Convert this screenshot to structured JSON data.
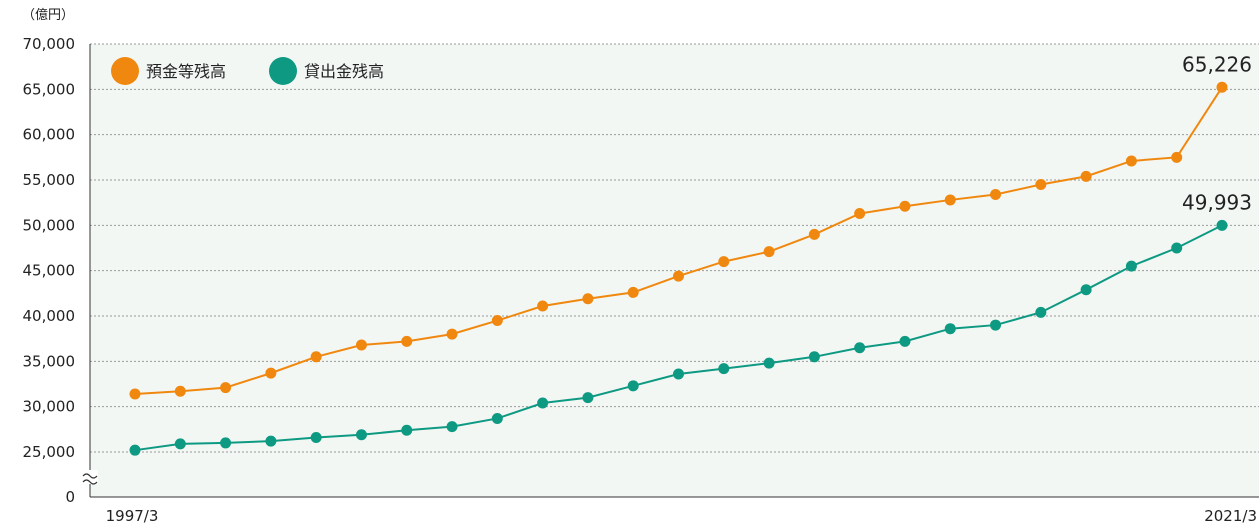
{
  "chart_data": {
    "type": "line",
    "unit_label": "（億円）",
    "y_ticks": [
      "70,000",
      "65,000",
      "60,000",
      "55,000",
      "50,000",
      "45,000",
      "40,000",
      "35,000",
      "30,000",
      "25,000",
      "0"
    ],
    "x_start_label": "1997/3",
    "x_end_label": "2021/3",
    "ylim": [
      25000,
      70000
    ],
    "axis_break": true,
    "grid": true,
    "legend_position": "top-left",
    "series": [
      {
        "name": "預金等残高",
        "color": "#F0880F",
        "values": [
          31400,
          31700,
          32100,
          33700,
          35500,
          36800,
          37200,
          38000,
          39500,
          41100,
          41900,
          42600,
          44400,
          46000,
          47100,
          49000,
          51300,
          52100,
          52800,
          53400,
          54500,
          55400,
          57100,
          57500,
          65226
        ],
        "end_label": "65,226"
      },
      {
        "name": "貸出金残高",
        "color": "#0E9A82",
        "values": [
          25200,
          25900,
          26000,
          26200,
          26600,
          26900,
          27400,
          27800,
          28700,
          30400,
          31000,
          32300,
          33600,
          34200,
          34800,
          35500,
          36500,
          37200,
          38600,
          39000,
          40400,
          42900,
          45500,
          47500,
          49993
        ],
        "end_label": "49,993"
      }
    ]
  }
}
